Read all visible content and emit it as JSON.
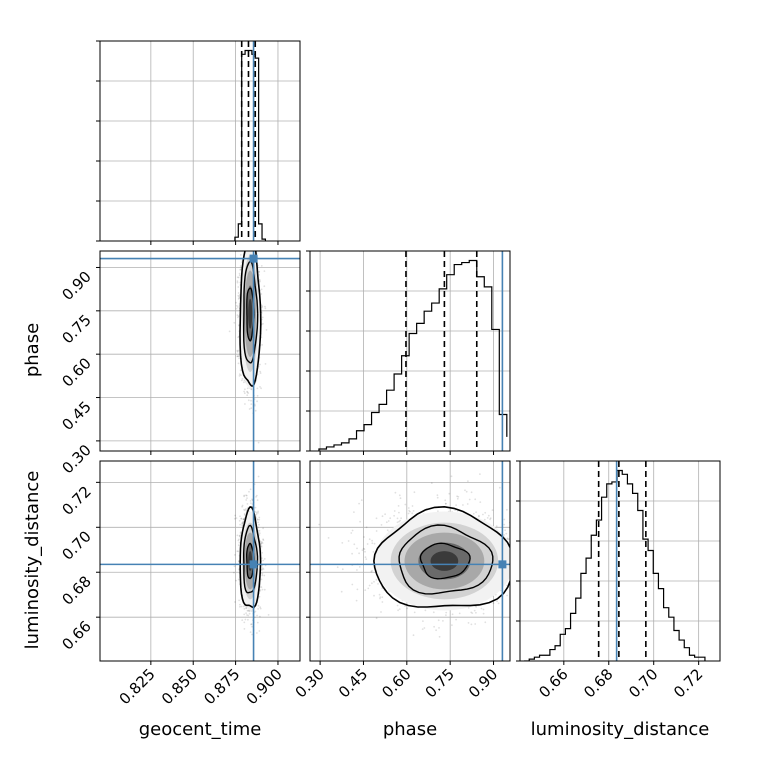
{
  "chart_data": {
    "type": "corner",
    "parameters": [
      {
        "name": "geocent_time",
        "xlabel": "geocent_time",
        "ylabel": "",
        "range": [
          0.795,
          0.913
        ],
        "ticks": [
          0.825,
          0.85,
          0.875,
          0.9
        ],
        "tick_labels": [
          "0.825",
          "0.850",
          "0.875",
          "0.900"
        ],
        "truth": 0.8856,
        "quantiles": [
          0.8786,
          0.8826,
          0.8866
        ]
      },
      {
        "name": "phase",
        "xlabel": "phase",
        "ylabel": "phase",
        "range": [
          0.265,
          0.957
        ],
        "ticks": [
          0.3,
          0.45,
          0.6,
          0.75,
          0.9
        ],
        "tick_labels": [
          "0.30",
          "0.45",
          "0.60",
          "0.75",
          "0.90"
        ],
        "truth": 0.9307,
        "quantiles": [
          0.597,
          0.73,
          0.842
        ]
      },
      {
        "name": "luminosity_distance",
        "xlabel": "luminosity_distance",
        "ylabel": "luminosity_distance",
        "range": [
          0.6405,
          0.7295
        ],
        "ticks": [
          0.66,
          0.68,
          0.7,
          0.72
        ],
        "tick_labels": [
          "0.66",
          "0.68",
          "0.70",
          "0.72"
        ],
        "truth": 0.6835,
        "quantiles": [
          0.6755,
          0.6845,
          0.6965
        ]
      }
    ],
    "histograms": [
      {
        "param": "geocent_time",
        "bin_edges": [
          0.8746,
          0.8766,
          0.8786,
          0.8806,
          0.8826,
          0.8846,
          0.8866,
          0.8886,
          0.8906,
          0.8926
        ],
        "counts": [
          0.02,
          0.09,
          0.98,
          1.0,
          1.0,
          0.98,
          0.96,
          0.09,
          0.01
        ]
      },
      {
        "param": "phase",
        "bin_edges": [
          0.296,
          0.322,
          0.348,
          0.374,
          0.4,
          0.426,
          0.452,
          0.478,
          0.504,
          0.53,
          0.556,
          0.582,
          0.608,
          0.634,
          0.66,
          0.686,
          0.712,
          0.738,
          0.764,
          0.79,
          0.816,
          0.842,
          0.868,
          0.894,
          0.92,
          0.946
        ],
        "counts": [
          0.01,
          0.02,
          0.03,
          0.04,
          0.06,
          0.1,
          0.13,
          0.19,
          0.23,
          0.3,
          0.38,
          0.47,
          0.58,
          0.63,
          0.69,
          0.73,
          0.8,
          0.87,
          0.92,
          0.93,
          0.94,
          0.86,
          0.81,
          0.6,
          0.18,
          0.07
        ]
      },
      {
        "param": "luminosity_distance",
        "bin_edges": [
          0.6423,
          0.6446,
          0.6469,
          0.6492,
          0.6515,
          0.6538,
          0.6561,
          0.6584,
          0.6607,
          0.663,
          0.6653,
          0.6676,
          0.6699,
          0.6722,
          0.6745,
          0.6768,
          0.6791,
          0.6814,
          0.6837,
          0.686,
          0.6883,
          0.6906,
          0.6929,
          0.6952,
          0.6975,
          0.6998,
          0.7021,
          0.7044,
          0.7067,
          0.709,
          0.7113,
          0.7136,
          0.7159,
          0.7182,
          0.7205,
          0.7228
        ],
        "counts": [
          0.0,
          0.01,
          0.02,
          0.03,
          0.03,
          0.06,
          0.08,
          0.14,
          0.17,
          0.25,
          0.33,
          0.46,
          0.54,
          0.66,
          0.74,
          0.86,
          0.93,
          0.94,
          1.0,
          0.98,
          0.93,
          0.88,
          0.79,
          0.64,
          0.58,
          0.46,
          0.38,
          0.28,
          0.23,
          0.16,
          0.11,
          0.07,
          0.03,
          0.02,
          0.02
        ]
      }
    ],
    "scatter_blobs": [
      {
        "x": "geocent_time",
        "y": "phase",
        "x_center": 0.8836,
        "x_sd": 0.003,
        "y_center": 0.74,
        "y_sd": 0.13
      },
      {
        "x": "geocent_time",
        "y": "luminosity_distance",
        "x_center": 0.8836,
        "x_sd": 0.003,
        "y_center": 0.685,
        "y_sd": 0.011
      },
      {
        "x": "phase",
        "y": "luminosity_distance",
        "x_center": 0.73,
        "x_sd": 0.12,
        "y_center": 0.685,
        "y_sd": 0.011
      }
    ],
    "grid": true,
    "truth_color": "#4682b4"
  },
  "colors": {
    "truth": "#4682b4",
    "hist": "#000000",
    "grid": "#b0b0b0",
    "quantile": "#000000"
  }
}
